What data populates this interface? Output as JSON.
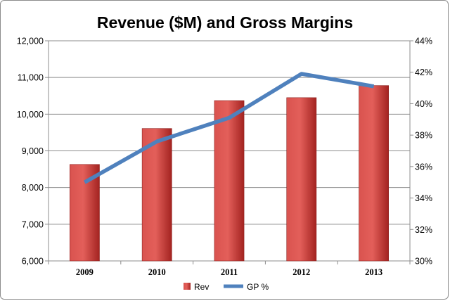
{
  "chart_data": {
    "type": "bar",
    "title": "Revenue ($M) and Gross Margins",
    "categories": [
      "2009",
      "2010",
      "2011",
      "2012",
      "2013"
    ],
    "series": [
      {
        "name": "Rev",
        "type": "bar",
        "axis": "left",
        "color": "#c0302b",
        "values": [
          8630,
          9610,
          10370,
          10450,
          10780
        ]
      },
      {
        "name": "GP %",
        "type": "line",
        "axis": "right",
        "color": "#4f81bd",
        "values": [
          35.0,
          37.6,
          39.1,
          41.9,
          41.1
        ]
      }
    ],
    "left_axis": {
      "min": 6000,
      "max": 12000,
      "ticks": [
        6000,
        7000,
        8000,
        9000,
        10000,
        11000,
        12000
      ],
      "tick_labels": [
        "6,000",
        "7,000",
        "8,000",
        "9,000",
        "10,000",
        "11,000",
        "12,000"
      ]
    },
    "right_axis": {
      "min": 30,
      "max": 44,
      "ticks": [
        30,
        32,
        34,
        36,
        38,
        40,
        42,
        44
      ],
      "tick_labels": [
        "30%",
        "32%",
        "34%",
        "36%",
        "38%",
        "40%",
        "42%",
        "44%"
      ]
    },
    "grid": true,
    "legend": "bottom"
  }
}
